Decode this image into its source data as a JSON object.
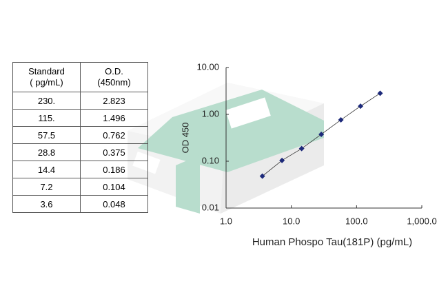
{
  "table": {
    "header": [
      [
        "Standard",
        "( pg/mL)"
      ],
      [
        "O.D.",
        "(450nm)"
      ]
    ],
    "rows": [
      [
        "230.",
        "2.823"
      ],
      [
        "115.",
        "1.496"
      ],
      [
        "57.5",
        "0.762"
      ],
      [
        "28.8",
        "0.375"
      ],
      [
        "14.4",
        "0.186"
      ],
      [
        "7.2",
        "0.104"
      ],
      [
        "3.6",
        "0.048"
      ]
    ]
  },
  "chart_data": {
    "type": "scatter",
    "x_label": "Human Phospo Tau(181P) (pg/mL)",
    "y_label": "OD 450",
    "x": [
      3.6,
      7.2,
      14.4,
      28.8,
      57.5,
      115,
      230
    ],
    "series": [
      {
        "name": "Standard",
        "color": "#1d2a7a",
        "values": [
          0.048,
          0.104,
          0.186,
          0.375,
          0.762,
          1.496,
          2.823
        ]
      }
    ],
    "xlim": [
      1,
      1000
    ],
    "ylim": [
      0.01,
      10
    ],
    "xticks": [
      {
        "value": 1,
        "label": "1.0"
      },
      {
        "value": 10,
        "label": "10.0"
      },
      {
        "value": 100,
        "label": "100.0"
      },
      {
        "value": 1000,
        "label": "1,000.0"
      }
    ],
    "yticks": [
      {
        "value": 10,
        "label": "10.00"
      },
      {
        "value": 1,
        "label": "1.00"
      },
      {
        "value": 0.1,
        "label": "0.10"
      },
      0.01
    ],
    "log_x": true,
    "log_y": true,
    "grid": false
  }
}
